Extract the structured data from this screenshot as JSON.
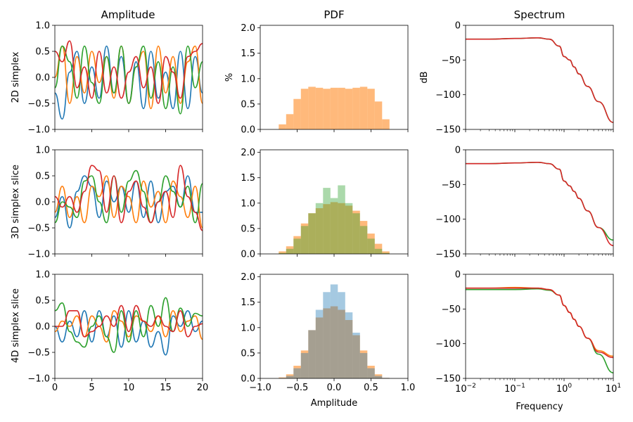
{
  "figure": {
    "column_titles": [
      "Amplitude",
      "PDF",
      "Spectrum"
    ],
    "row_labels": [
      "2D simplex",
      "3D simplex slice",
      "4D simplex slice"
    ],
    "pdf_ylabel": "%",
    "spectrum_ylabel": "dB",
    "pdf_xlabel": "Amplitude",
    "spectrum_xlabel": "Frequency",
    "colors": [
      "#1f77b4",
      "#ff7f0e",
      "#2ca02c",
      "#d62728"
    ]
  },
  "chart_data": [
    {
      "type": "line",
      "panel": "Amplitude / 2D simplex",
      "xlim": [
        0,
        20
      ],
      "ylim": [
        -1.0,
        1.0
      ],
      "xticks": [
        "0",
        "5",
        "10",
        "15",
        "20"
      ],
      "yticks": [
        "1.0",
        "0.5",
        "0.0",
        "−0.5",
        "−1.0"
      ],
      "x": [
        0,
        1,
        2,
        3,
        4,
        5,
        6,
        7,
        8,
        9,
        10,
        11,
        12,
        13,
        14,
        15,
        16,
        17,
        18,
        19,
        20
      ],
      "series": [
        {
          "color": "#1f77b4",
          "values": [
            -0.3,
            -0.8,
            0.1,
            0.5,
            -0.5,
            0.2,
            -0.4,
            0.6,
            -0.3,
            0.4,
            -0.5,
            0.3,
            -0.6,
            0.5,
            -0.4,
            0.1,
            -0.6,
            0.5,
            -0.6,
            0.4,
            -0.3
          ]
        },
        {
          "color": "#ff7f0e",
          "values": [
            0.0,
            0.6,
            -0.5,
            0.4,
            -0.3,
            0.5,
            -0.1,
            0.4,
            -0.4,
            0.6,
            -0.5,
            0.2,
            0.5,
            -0.6,
            0.6,
            -0.3,
            0.4,
            -0.5,
            0.3,
            0.6,
            -0.5
          ]
        },
        {
          "color": "#2ca02c",
          "values": [
            -0.2,
            0.6,
            0.3,
            -0.4,
            0.6,
            -0.1,
            -0.5,
            0.4,
            -0.3,
            0.6,
            -0.5,
            0.2,
            0.6,
            -0.4,
            0.3,
            -0.6,
            0.2,
            -0.7,
            0.6,
            -0.2,
            0.3
          ]
        },
        {
          "color": "#d62728",
          "values": [
            0.5,
            0.3,
            0.7,
            -0.2,
            0.2,
            -0.4,
            0.5,
            -0.3,
            0.2,
            -0.4,
            0.1,
            0.4,
            -0.2,
            0.2,
            -0.5,
            0.4,
            0.1,
            -0.4,
            0.4,
            0.5,
            0.65
          ]
        }
      ]
    },
    {
      "type": "bar",
      "panel": "PDF / 2D simplex",
      "xlim": [
        -1.0,
        1.0
      ],
      "ylim": [
        0,
        2.05
      ],
      "xticks": [
        "−1.0",
        "−0.5",
        "0.0",
        "0.5",
        "1.0"
      ],
      "yticks": [
        "2.0",
        "1.5",
        "1.0",
        "0.5",
        "0.0"
      ],
      "ylabel": "%",
      "x": [
        -0.8,
        -0.7,
        -0.6,
        -0.5,
        -0.4,
        -0.3,
        -0.2,
        -0.1,
        0.0,
        0.1,
        0.2,
        0.3,
        0.4,
        0.5,
        0.6,
        0.7,
        0.8
      ],
      "series": [
        {
          "color": "#ff7f0e",
          "values": [
            0.0,
            0.1,
            0.3,
            0.6,
            0.8,
            0.84,
            0.82,
            0.8,
            0.82,
            0.82,
            0.8,
            0.82,
            0.84,
            0.8,
            0.55,
            0.2,
            0.0
          ]
        }
      ]
    },
    {
      "type": "line",
      "panel": "Spectrum / 2D simplex",
      "xscale": "log",
      "xlim": [
        0.01,
        10
      ],
      "ylim": [
        -150,
        0
      ],
      "yticks": [
        "0",
        "−50",
        "−100",
        "−150"
      ],
      "ylabel": "dB",
      "x": [
        0.01,
        0.03,
        0.1,
        0.3,
        0.5,
        0.8,
        1.0,
        1.3,
        1.6,
        2,
        3,
        5,
        10
      ],
      "series": [
        {
          "color": "#2ca02c",
          "values": [
            -20,
            -20,
            -19,
            -18,
            -20,
            -30,
            -45,
            -50,
            -60,
            -70,
            -88,
            -110,
            -140
          ]
        },
        {
          "color": "#d62728",
          "values": [
            -20,
            -20,
            -19,
            -18,
            -20,
            -30,
            -45,
            -50,
            -60,
            -70,
            -88,
            -110,
            -140
          ]
        }
      ]
    },
    {
      "type": "line",
      "panel": "Amplitude / 3D simplex slice",
      "xlim": [
        0,
        20
      ],
      "ylim": [
        -1.0,
        1.0
      ],
      "xticks": [
        "0",
        "5",
        "10",
        "15",
        "20"
      ],
      "yticks": [
        "1.0",
        "0.5",
        "0.0",
        "−0.5",
        "−1.0"
      ],
      "x": [
        0,
        1,
        2,
        3,
        4,
        5,
        6,
        7,
        8,
        9,
        10,
        11,
        12,
        13,
        14,
        15,
        16,
        17,
        18,
        19,
        20
      ],
      "series": [
        {
          "color": "#1f77b4",
          "values": [
            -0.3,
            0.1,
            -0.5,
            0.2,
            0.5,
            0.3,
            -0.3,
            0.4,
            0.0,
            0.3,
            -0.2,
            0.4,
            -0.3,
            0.4,
            -0.4,
            0.2,
            0.3,
            -0.1,
            0.5,
            -0.2,
            -0.2
          ]
        },
        {
          "color": "#ff7f0e",
          "values": [
            -0.2,
            0.3,
            -0.3,
            0.1,
            -0.4,
            0.3,
            0.1,
            0.5,
            -0.3,
            0.3,
            0.1,
            -0.4,
            0.4,
            -0.1,
            0.2,
            -0.4,
            0.4,
            0.1,
            -0.3,
            0.3,
            -0.5
          ]
        },
        {
          "color": "#2ca02c",
          "values": [
            -0.4,
            0.0,
            -0.1,
            -0.3,
            0.4,
            0.5,
            0.0,
            -0.4,
            0.5,
            -0.2,
            0.4,
            0.6,
            0.2,
            -0.4,
            0.0,
            0.5,
            0.2,
            -0.1,
            0.3,
            -0.4,
            0.35
          ]
        },
        {
          "color": "#d62728",
          "values": [
            0.1,
            -0.1,
            0.1,
            -0.2,
            0.2,
            0.7,
            0.6,
            -0.2,
            0.5,
            -0.4,
            0.2,
            0.4,
            -0.1,
            -0.4,
            0.0,
            0.2,
            -0.3,
            0.7,
            0.1,
            -0.2,
            -0.55
          ]
        }
      ]
    },
    {
      "type": "bar",
      "panel": "PDF / 3D simplex slice",
      "xlim": [
        -1.0,
        1.0
      ],
      "ylim": [
        0,
        2.05
      ],
      "xticks": [
        "−1.0",
        "−0.5",
        "0.0",
        "0.5",
        "1.0"
      ],
      "yticks": [
        "2.0",
        "1.5",
        "1.0",
        "0.5",
        "0.0"
      ],
      "x": [
        -0.8,
        -0.7,
        -0.6,
        -0.5,
        -0.4,
        -0.3,
        -0.2,
        -0.1,
        0.0,
        0.1,
        0.2,
        0.3,
        0.4,
        0.5,
        0.6,
        0.7,
        0.8
      ],
      "series": [
        {
          "color": "#ff7f0e",
          "values": [
            0.0,
            0.05,
            0.15,
            0.35,
            0.6,
            0.8,
            0.9,
            0.98,
            1.02,
            1.0,
            0.95,
            0.85,
            0.65,
            0.4,
            0.2,
            0.05,
            0.0
          ]
        },
        {
          "color": "#2ca02c",
          "values": [
            0.0,
            0.02,
            0.1,
            0.3,
            0.55,
            0.8,
            1.0,
            1.3,
            1.1,
            1.35,
            1.0,
            0.8,
            0.55,
            0.3,
            0.1,
            0.02,
            0.0
          ]
        }
      ]
    },
    {
      "type": "line",
      "panel": "Spectrum / 3D simplex slice",
      "xscale": "log",
      "xlim": [
        0.01,
        10
      ],
      "ylim": [
        -150,
        0
      ],
      "yticks": [
        "0",
        "−50",
        "−100",
        "−150"
      ],
      "x": [
        0.01,
        0.03,
        0.1,
        0.3,
        0.5,
        0.8,
        1.0,
        1.3,
        1.6,
        2,
        3,
        5,
        10
      ],
      "series": [
        {
          "color": "#2ca02c",
          "values": [
            -20,
            -20,
            -19,
            -18,
            -20,
            -28,
            -45,
            -52,
            -60,
            -70,
            -88,
            -112,
            -130
          ]
        },
        {
          "color": "#d62728",
          "values": [
            -20,
            -20,
            -19,
            -18,
            -20,
            -28,
            -45,
            -52,
            -60,
            -70,
            -88,
            -112,
            -138
          ]
        }
      ]
    },
    {
      "type": "line",
      "panel": "Amplitude / 4D simplex slice",
      "xlim": [
        0,
        20
      ],
      "ylim": [
        -1.0,
        1.0
      ],
      "xticks": [
        "0",
        "5",
        "10",
        "15",
        "20"
      ],
      "yticks": [
        "1.0",
        "0.5",
        "0.0",
        "−0.5",
        "−1.0"
      ],
      "xlabel_shown_on": "PDF",
      "x": [
        0,
        1,
        2,
        3,
        4,
        5,
        6,
        7,
        8,
        9,
        10,
        11,
        12,
        13,
        14,
        15,
        16,
        17,
        18,
        19,
        20
      ],
      "series": [
        {
          "color": "#1f77b4",
          "values": [
            0.0,
            -0.3,
            0.1,
            -0.2,
            0.3,
            -0.3,
            0.3,
            -0.2,
            0.2,
            -0.4,
            0.3,
            -0.3,
            0.1,
            -0.4,
            -0.1,
            -0.55,
            0.2,
            0.0,
            0.3,
            -0.1,
            0.1
          ]
        },
        {
          "color": "#ff7f0e",
          "values": [
            -0.1,
            0.1,
            0.0,
            0.2,
            -0.2,
            0.2,
            0.0,
            -0.3,
            0.3,
            0.1,
            -0.2,
            0.2,
            0.1,
            -0.1,
            0.2,
            -0.2,
            0.3,
            -0.1,
            0.1,
            0.2,
            -0.25
          ]
        },
        {
          "color": "#2ca02c",
          "values": [
            0.3,
            0.45,
            -0.1,
            -0.3,
            -0.4,
            0.0,
            0.2,
            -0.2,
            -0.5,
            0.3,
            -0.3,
            0.3,
            -0.2,
            0.4,
            0.0,
            0.55,
            -0.1,
            0.35,
            0.0,
            0.25,
            0.2
          ]
        },
        {
          "color": "#d62728",
          "values": [
            0.0,
            0.0,
            0.3,
            0.3,
            -0.2,
            -0.1,
            0.0,
            0.2,
            0.0,
            0.4,
            -0.1,
            0.4,
            0.1,
            0.0,
            0.2,
            0.0,
            -0.1,
            0.3,
            -0.2,
            0.0,
            0.05
          ]
        }
      ]
    },
    {
      "type": "bar",
      "panel": "PDF / 4D simplex slice",
      "xlim": [
        -1.0,
        1.0
      ],
      "ylim": [
        0,
        2.05
      ],
      "xticks": [
        "−1.0",
        "−0.5",
        "0.0",
        "0.5",
        "1.0"
      ],
      "yticks": [
        "2.0",
        "1.5",
        "1.0",
        "0.5",
        "0.0"
      ],
      "xlabel": "Amplitude",
      "x": [
        -0.8,
        -0.7,
        -0.6,
        -0.5,
        -0.4,
        -0.3,
        -0.2,
        -0.1,
        0.0,
        0.1,
        0.2,
        0.3,
        0.4,
        0.5,
        0.6,
        0.7,
        0.8
      ],
      "series": [
        {
          "color": "#ff7f0e",
          "values": [
            0.0,
            0.02,
            0.08,
            0.25,
            0.55,
            0.95,
            1.2,
            1.38,
            1.42,
            1.35,
            1.15,
            0.85,
            0.55,
            0.25,
            0.08,
            0.01,
            0.0
          ]
        },
        {
          "color": "#1f77b4",
          "values": [
            0.0,
            0.01,
            0.05,
            0.2,
            0.5,
            0.95,
            1.35,
            1.7,
            1.85,
            1.7,
            1.3,
            0.9,
            0.5,
            0.2,
            0.05,
            0.01,
            0.0
          ]
        }
      ]
    },
    {
      "type": "line",
      "panel": "Spectrum / 4D simplex slice",
      "xscale": "log",
      "xlim": [
        0.01,
        10
      ],
      "ylim": [
        -150,
        0
      ],
      "yticks": [
        "0",
        "−50",
        "−100",
        "−150"
      ],
      "xticks": [
        "10^-2",
        "10^-1",
        "10^0",
        "10^1"
      ],
      "xlabel": "Frequency",
      "x": [
        0.01,
        0.03,
        0.1,
        0.3,
        0.5,
        0.8,
        1.0,
        1.3,
        1.6,
        2,
        3,
        5,
        10
      ],
      "series": [
        {
          "color": "#2ca02c",
          "values": [
            -22,
            -22,
            -22,
            -21,
            -23,
            -30,
            -45,
            -55,
            -65,
            -75,
            -92,
            -115,
            -142
          ]
        },
        {
          "color": "#ff7f0e",
          "values": [
            -20,
            -20,
            -19,
            -20,
            -22,
            -30,
            -45,
            -55,
            -65,
            -75,
            -92,
            -110,
            -118
          ]
        },
        {
          "color": "#d62728",
          "values": [
            -20,
            -20,
            -20,
            -20,
            -22,
            -30,
            -45,
            -55,
            -65,
            -75,
            -92,
            -112,
            -120
          ]
        }
      ]
    }
  ]
}
